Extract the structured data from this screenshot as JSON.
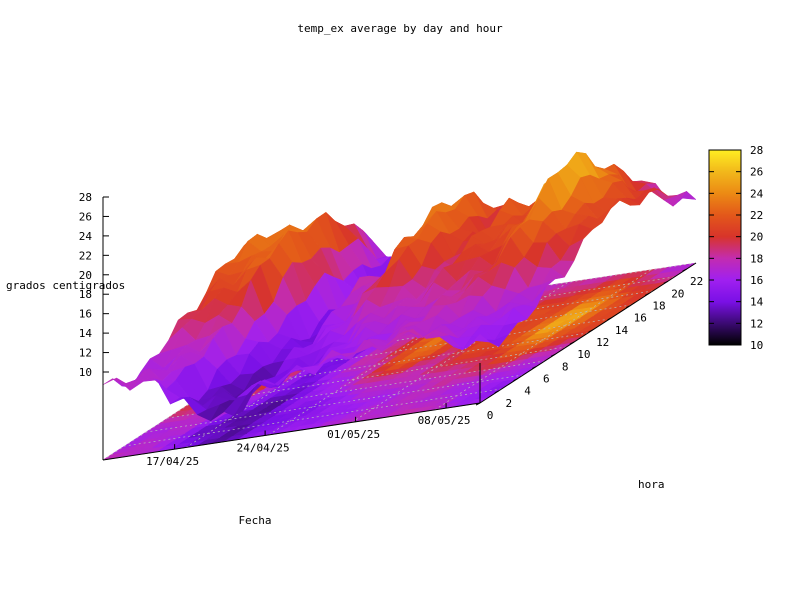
{
  "chart_data": {
    "type": "surface3d",
    "title": "temp_ex average by day and hour",
    "xlabel": "Fecha",
    "ylabel": "hora",
    "zlabel": "grados centigrados",
    "x_ticks": [
      "17/04/25",
      "24/04/25",
      "01/05/25",
      "08/05/25"
    ],
    "y_ticks": [
      "0",
      "2",
      "4",
      "6",
      "8",
      "10",
      "12",
      "14",
      "16",
      "18",
      "20",
      "22"
    ],
    "z_ticks": [
      "10",
      "12",
      "14",
      "16",
      "18",
      "20",
      "22",
      "24",
      "26",
      "28"
    ],
    "colorbox_ticks": [
      "10",
      "12",
      "14",
      "16",
      "18",
      "20",
      "22",
      "24",
      "26",
      "28"
    ],
    "zlim": [
      10,
      28
    ],
    "cblim": [
      10,
      28
    ],
    "x_range": [
      "13/04/25",
      "11/05/25"
    ],
    "y_range": [
      0,
      23
    ],
    "palette": [
      "#000000",
      "#3b0a73",
      "#7a10e6",
      "#a020f0",
      "#c32cb0",
      "#d8342a",
      "#e3581a",
      "#ec8a14",
      "#f2b81b",
      "#ffee22"
    ],
    "projection_on_base": true,
    "grid": true,
    "colorbox": "right",
    "z_values_note": "estimated temperatures by hour (rows 0..23) and day (cols 0..28)"
  }
}
